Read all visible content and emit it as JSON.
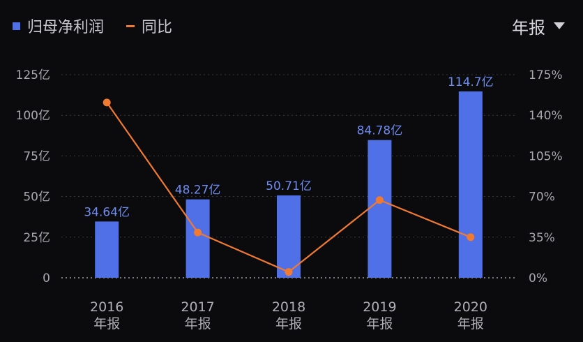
{
  "legend": {
    "bar_label": "归母净利润",
    "line_label": "同比"
  },
  "period_selector": {
    "label": "年报"
  },
  "colors": {
    "bar": "#4f70e6",
    "line": "#f07a32",
    "background": "#0b0b0d"
  },
  "chart_data": {
    "type": "bar",
    "categories": [
      "2016",
      "2017",
      "2018",
      "2019",
      "2020"
    ],
    "category_sublabel": "年报",
    "series": [
      {
        "name": "归母净利润",
        "kind": "bar",
        "axis": "left",
        "values": [
          34.64,
          48.27,
          50.71,
          84.78,
          114.7
        ],
        "labels": [
          "34.64亿",
          "48.27亿",
          "50.71亿",
          "84.78亿",
          "114.7亿"
        ]
      },
      {
        "name": "同比",
        "kind": "line",
        "axis": "right",
        "values": [
          151,
          39,
          5,
          67,
          35
        ]
      }
    ],
    "y_left": {
      "range": [
        0,
        125
      ],
      "ticks": [
        0,
        25,
        50,
        75,
        100,
        125
      ],
      "tick_labels": [
        "0",
        "25亿",
        "50亿",
        "75亿",
        "100亿",
        "125亿"
      ]
    },
    "y_right": {
      "range": [
        0,
        175
      ],
      "ticks": [
        0,
        35,
        70,
        105,
        140,
        175
      ],
      "tick_labels": [
        "0%",
        "35%",
        "70%",
        "105%",
        "140%",
        "175%"
      ]
    },
    "grid": true,
    "legend_position": "top-left"
  }
}
